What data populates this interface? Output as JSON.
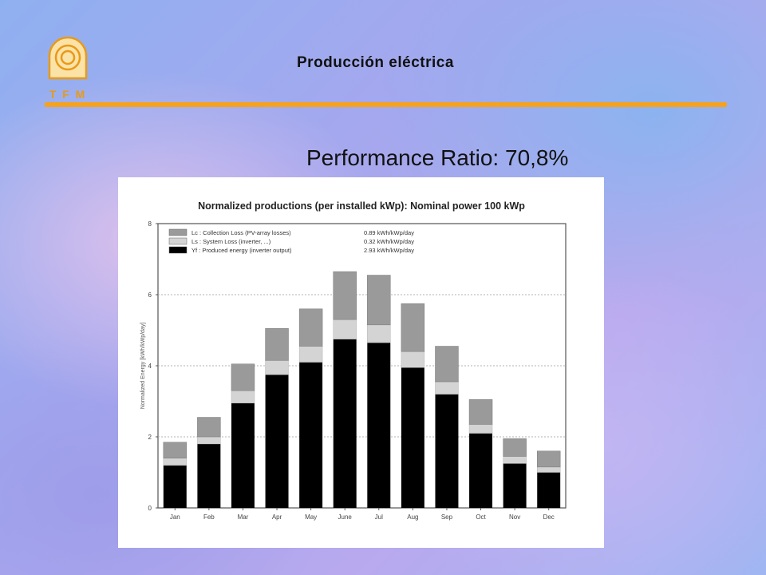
{
  "header": {
    "title": "Producción eléctrica",
    "logo_text": "T F M"
  },
  "subtitle": "Performance Ratio: 70,8%",
  "colors": {
    "accent_rule": "#f6a21c",
    "collection_loss": "#9a9a9a",
    "system_loss": "#d4d4d4",
    "produced": "#000000"
  },
  "chart_data": {
    "type": "bar",
    "stacked": true,
    "title": "Normalized productions (per installed kWp):  Nominal power 100 kWp",
    "ylabel": "Normalized Energy  [kWh/kWp/day]",
    "ylim": [
      0,
      8
    ],
    "yticks": [
      0,
      2,
      4,
      6,
      8
    ],
    "grid": true,
    "legend_position": "top-left",
    "categories": [
      "Jan",
      "Feb",
      "Mar",
      "Apr",
      "May",
      "June",
      "Jul",
      "Aug",
      "Sep",
      "Oct",
      "Nov",
      "Dec"
    ],
    "series": [
      {
        "name": "Yf : Produced energy  (inverter output)",
        "value_label": "2.93 kWh/kWp/day",
        "color": "#000000",
        "values": [
          1.2,
          1.8,
          2.95,
          3.75,
          4.1,
          4.75,
          4.65,
          3.95,
          3.2,
          2.1,
          1.25,
          1.0
        ]
      },
      {
        "name": "Ls : System Loss  (inverter, ...)",
        "value_label": "0.32 kWh/kWp/day",
        "color": "#d4d4d4",
        "values": [
          0.2,
          0.2,
          0.35,
          0.4,
          0.45,
          0.55,
          0.5,
          0.45,
          0.35,
          0.25,
          0.2,
          0.15
        ]
      },
      {
        "name": "Lc : Collection Loss  (PV-array losses)",
        "value_label": "0.89 kWh/kWp/day",
        "color": "#9a9a9a",
        "values": [
          0.45,
          0.55,
          0.75,
          0.9,
          1.05,
          1.35,
          1.4,
          1.35,
          1.0,
          0.7,
          0.5,
          0.45
        ]
      }
    ]
  }
}
